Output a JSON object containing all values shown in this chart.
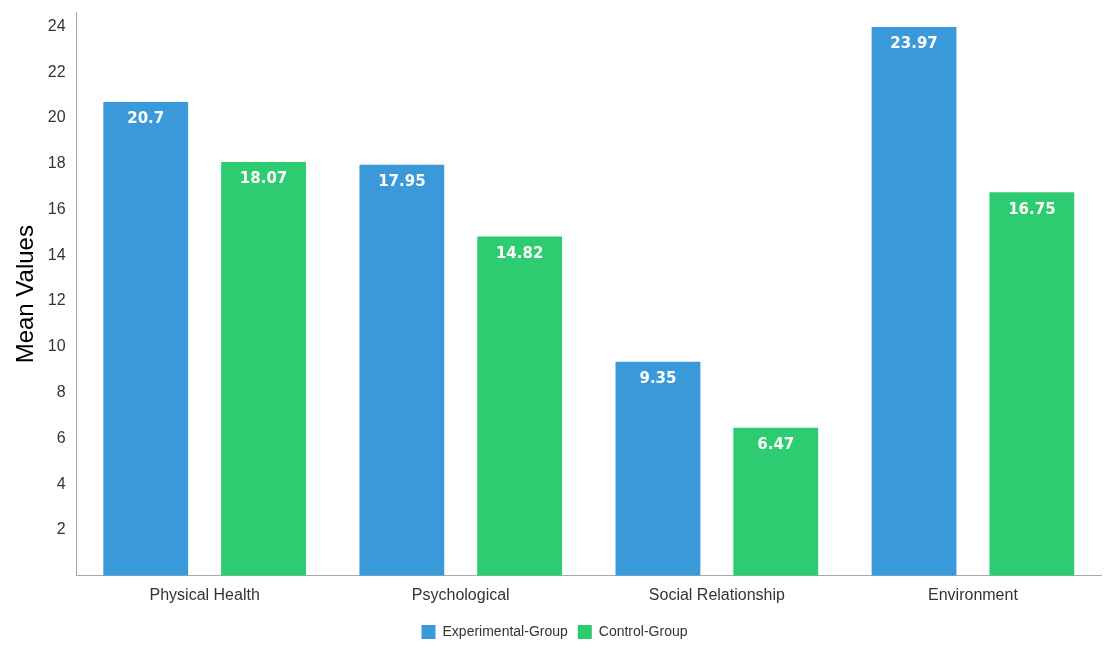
{
  "chart_data": {
    "type": "bar",
    "ylabel": "Mean Values",
    "categories": [
      "Physical Health",
      "Psychological",
      "Social Relationship",
      "Environment"
    ],
    "series": [
      {
        "name": "Experimental-Group",
        "color": "#3a99d9",
        "values": [
          20.7,
          17.95,
          9.35,
          23.97
        ]
      },
      {
        "name": "Control-Group",
        "color": "#2ecc71",
        "values": [
          18.07,
          14.82,
          6.47,
          16.75
        ]
      }
    ],
    "ylim": [
      0,
      24.6
    ],
    "yticks": [
      2,
      4,
      6,
      8,
      10,
      12,
      14,
      16,
      18,
      20,
      22,
      24
    ],
    "grid": false,
    "legend": "bottom",
    "data_labels": true
  }
}
